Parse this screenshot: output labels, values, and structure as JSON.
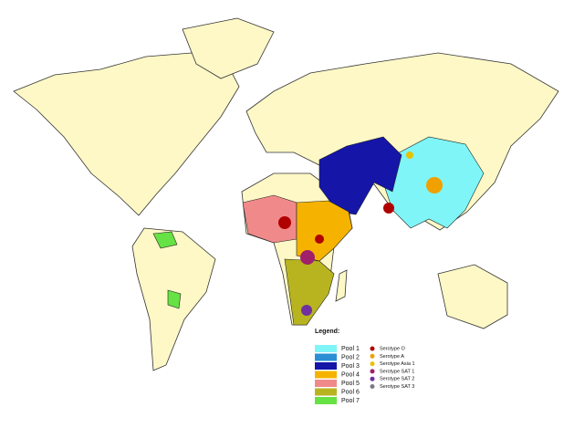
{
  "legend": {
    "title": "Legend:",
    "pools": [
      {
        "label": "Pool 1",
        "color": "#7ff5f7"
      },
      {
        "label": "Pool 2",
        "color": "#2a8fd4"
      },
      {
        "label": "Pool 3",
        "color": "#1515a8"
      },
      {
        "label": "Pool 4",
        "color": "#f5b300"
      },
      {
        "label": "Pool 5",
        "color": "#f08a8a"
      },
      {
        "label": "Pool 6",
        "color": "#b8b420"
      },
      {
        "label": "Pool 7",
        "color": "#66e244"
      }
    ],
    "serotypes": [
      {
        "label": "Serotype O",
        "color": "#b00000"
      },
      {
        "label": "Serotype A",
        "color": "#f0a000"
      },
      {
        "label": "Serotype Asia 1",
        "color": "#e6c200"
      },
      {
        "label": "Serotype SAT 1",
        "color": "#a0206a"
      },
      {
        "label": "Serotype SAT 2",
        "color": "#7030a0"
      },
      {
        "label": "Serotype SAT 3",
        "color": "#7a7a8a"
      }
    ]
  }
}
